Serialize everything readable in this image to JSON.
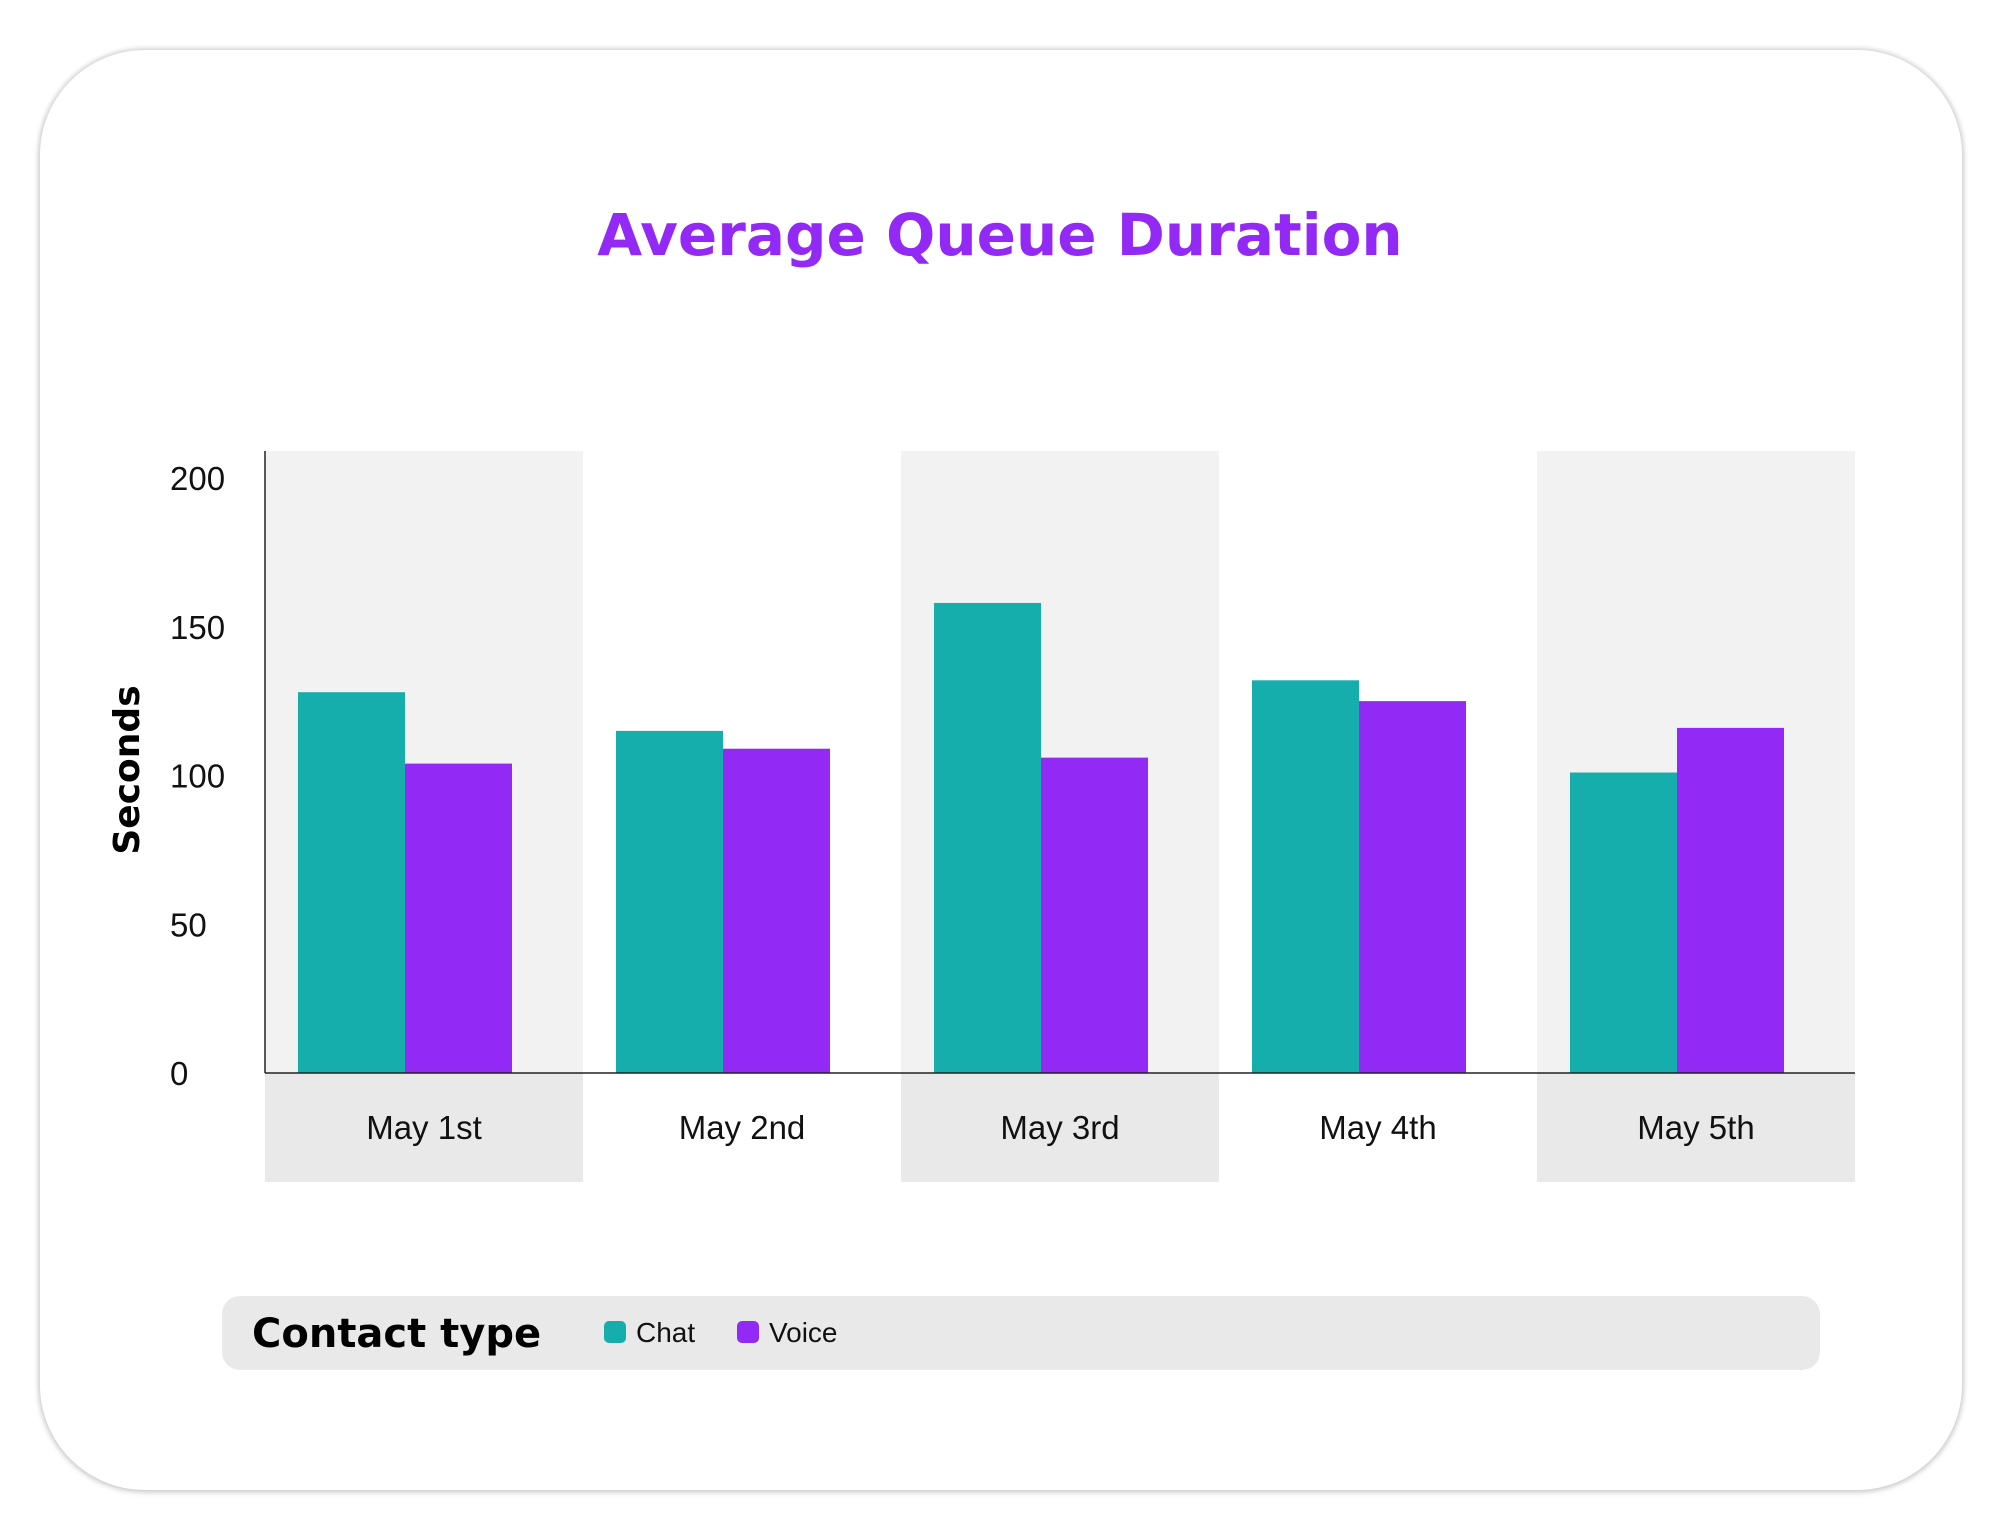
{
  "chart_data": {
    "type": "bar",
    "title": "Average Queue Duration",
    "xlabel": "",
    "ylabel": "Seconds",
    "ylim": [
      0,
      200
    ],
    "yticks": [
      0,
      50,
      100,
      150,
      200
    ],
    "categories": [
      "May 1st",
      "May 2nd",
      "May 3rd",
      "May 4th",
      "May 5th"
    ],
    "series": [
      {
        "name": "Chat",
        "color": "#16adad",
        "values": [
          128,
          115,
          158,
          132,
          101
        ]
      },
      {
        "name": "Voice",
        "color": "#9229f5",
        "values": [
          104,
          109,
          106,
          125,
          116
        ]
      }
    ],
    "legend": {
      "title": "Contact type",
      "placement": "bottom"
    },
    "grid": false,
    "banded_background": true
  },
  "colors": {
    "title": "#9229f5",
    "band": "#f2f2f2",
    "tick_band": "#e9e9e9",
    "legend_bg": "#e9e9e9"
  }
}
